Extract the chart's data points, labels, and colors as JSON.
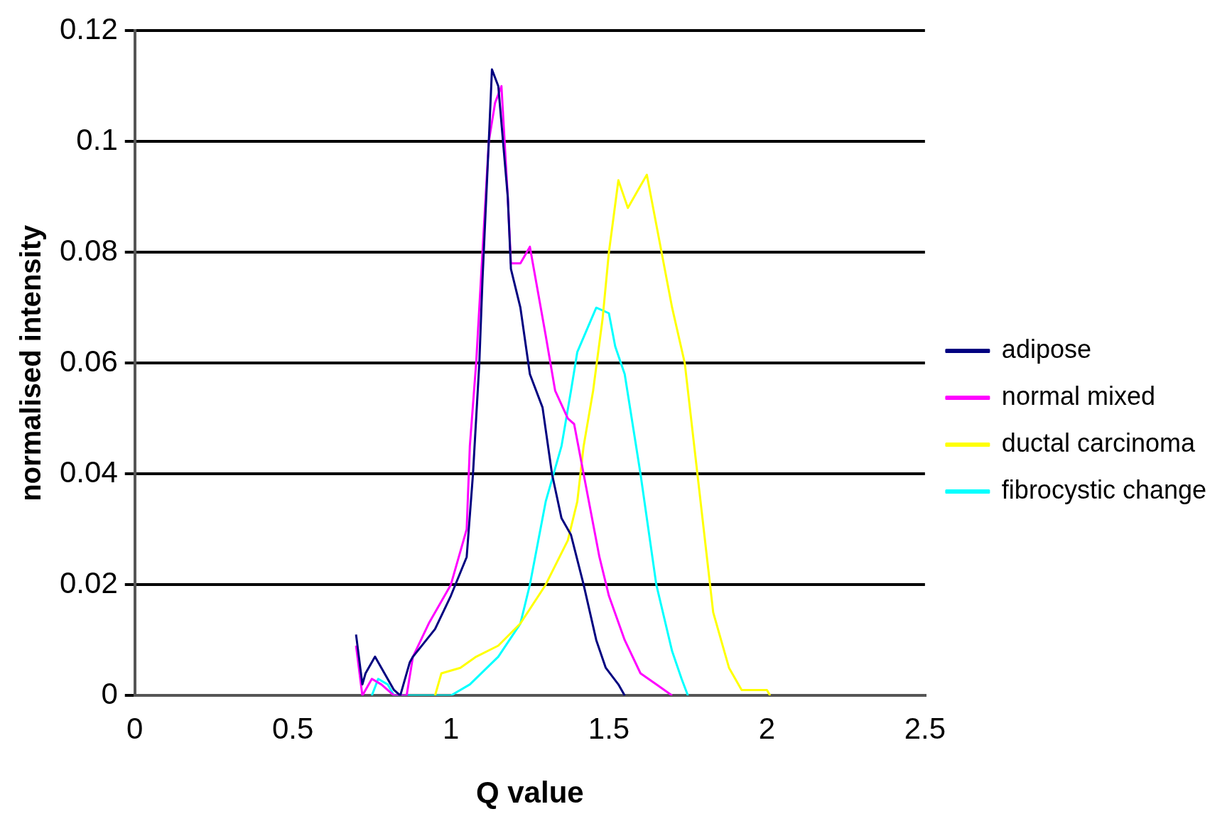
{
  "chart_data": {
    "type": "line",
    "xlabel": "Q value",
    "ylabel": "normalised intensity",
    "xlim": [
      0,
      2.5
    ],
    "xticks": [
      0,
      0.5,
      1,
      1.5,
      2,
      2.5
    ],
    "ylim": [
      0,
      0.12
    ],
    "yticks": [
      0,
      0.02,
      0.04,
      0.06,
      0.08,
      0.1,
      0.12
    ],
    "grid": "y",
    "legend": "right",
    "marker": "none",
    "line_style": "solid",
    "series": [
      {
        "name": "adipose",
        "color": "#000080",
        "x": [
          0.7,
          0.72,
          0.73,
          0.76,
          0.79,
          0.82,
          0.84,
          0.87,
          0.88,
          0.95,
          1.0,
          1.05,
          1.07,
          1.09,
          1.1,
          1.12,
          1.13,
          1.15,
          1.18,
          1.19,
          1.22,
          1.25,
          1.29,
          1.32,
          1.35,
          1.38,
          1.42,
          1.46,
          1.49,
          1.53,
          1.55
        ],
        "values": [
          0.011,
          0.002,
          0.004,
          0.007,
          0.004,
          0.001,
          0,
          0.006,
          0.007,
          0.012,
          0.018,
          0.025,
          0.04,
          0.06,
          0.075,
          0.1,
          0.113,
          0.11,
          0.09,
          0.077,
          0.07,
          0.058,
          0.052,
          0.04,
          0.032,
          0.029,
          0.02,
          0.01,
          0.005,
          0.002,
          0
        ]
      },
      {
        "name": "normal mixed",
        "color": "#ff00ff",
        "x": [
          0.7,
          0.72,
          0.75,
          0.78,
          0.82,
          0.86,
          0.88,
          0.93,
          1.0,
          1.05,
          1.06,
          1.08,
          1.1,
          1.12,
          1.14,
          1.16,
          1.18,
          1.19,
          1.22,
          1.25,
          1.3,
          1.33,
          1.37,
          1.39,
          1.42,
          1.47,
          1.5,
          1.55,
          1.6,
          1.65,
          1.7
        ],
        "values": [
          0.009,
          0,
          0.003,
          0.002,
          0,
          0,
          0.007,
          0.013,
          0.02,
          0.03,
          0.045,
          0.06,
          0.08,
          0.1,
          0.107,
          0.11,
          0.09,
          0.078,
          0.078,
          0.081,
          0.065,
          0.055,
          0.05,
          0.049,
          0.04,
          0.025,
          0.018,
          0.01,
          0.004,
          0.002,
          0
        ]
      },
      {
        "name": "ductal carcinoma",
        "color": "#ffff00",
        "x": [
          0.95,
          0.97,
          1.03,
          1.08,
          1.15,
          1.22,
          1.3,
          1.37,
          1.4,
          1.42,
          1.45,
          1.48,
          1.5,
          1.53,
          1.56,
          1.6,
          1.62,
          1.65,
          1.7,
          1.74,
          1.77,
          1.8,
          1.83,
          1.88,
          1.92,
          2.0,
          2.01
        ],
        "values": [
          0,
          0.004,
          0.005,
          0.007,
          0.009,
          0.013,
          0.02,
          0.028,
          0.035,
          0.045,
          0.055,
          0.068,
          0.08,
          0.093,
          0.088,
          0.092,
          0.094,
          0.085,
          0.07,
          0.06,
          0.045,
          0.03,
          0.015,
          0.005,
          0.001,
          0.001,
          0
        ]
      },
      {
        "name": "fibrocystic change",
        "color": "#00ffff",
        "x": [
          0.75,
          0.77,
          0.8,
          0.82,
          1.0,
          1.06,
          1.15,
          1.22,
          1.25,
          1.3,
          1.35,
          1.38,
          1.4,
          1.43,
          1.46,
          1.5,
          1.52,
          1.55,
          1.6,
          1.65,
          1.7,
          1.73,
          1.75
        ],
        "values": [
          0,
          0.003,
          0.002,
          0,
          0,
          0.002,
          0.007,
          0.013,
          0.02,
          0.035,
          0.045,
          0.055,
          0.062,
          0.066,
          0.07,
          0.069,
          0.063,
          0.058,
          0.04,
          0.02,
          0.008,
          0.003,
          0
        ]
      }
    ]
  }
}
